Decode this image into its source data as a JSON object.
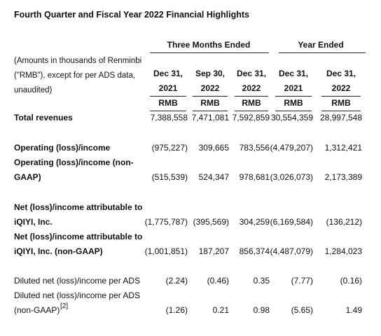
{
  "title": "Fourth Quarter and Fiscal Year 2022 Financial Highlights",
  "groups": {
    "three_months": "Three Months Ended",
    "year": "Year Ended"
  },
  "note_lines": [
    "(Amounts in thousands of Renminbi",
    "(\"RMB\"), except for per ADS data,",
    "unaudited)"
  ],
  "columns": [
    {
      "date": "Dec 31,",
      "year": "2021",
      "unit": "RMB"
    },
    {
      "date": "Sep 30,",
      "year": "2022",
      "unit": "RMB"
    },
    {
      "date": "Dec 31,",
      "year": "2022",
      "unit": "RMB"
    },
    {
      "date": "Dec 31,",
      "year": "2021",
      "unit": "RMB"
    },
    {
      "date": "Dec 31,",
      "year": "2022",
      "unit": "RMB"
    }
  ],
  "rows": [
    {
      "label": [
        "Total revenues"
      ],
      "bold": true,
      "values": [
        "7,388,558",
        "7,471,081",
        "7,592,859",
        "30,554,359",
        "28,997,548"
      ]
    },
    {
      "label": [
        "Operating (loss)/income"
      ],
      "bold": true,
      "values": [
        "(975,227)",
        "309,665",
        "783,556",
        "(4,479,207)",
        "1,312,421"
      ]
    },
    {
      "label": [
        "Operating (loss)/income (non-",
        "GAAP)"
      ],
      "bold": true,
      "values": [
        "(515,539)",
        "524,347",
        "978,681",
        "(3,026,073)",
        "2,173,389"
      ]
    },
    {
      "label": [
        "Net (loss)/income attributable to",
        "iQIYI, Inc."
      ],
      "bold": true,
      "values": [
        "(1,775,787)",
        "(395,569)",
        "304,259",
        "(6,169,584)",
        "(136,212)"
      ]
    },
    {
      "label": [
        "Net (loss)/income attributable to",
        "iQIYI, Inc. (non-GAAP)"
      ],
      "bold": true,
      "values": [
        "(1,001,851)",
        "187,207",
        "856,374",
        "(4,487,079)",
        "1,284,023"
      ]
    },
    {
      "label": [
        "Diluted net (loss)/income per ADS"
      ],
      "bold": false,
      "values": [
        "(2.24)",
        "(0.46)",
        "0.35",
        "(7.77)",
        "(0.16)"
      ]
    },
    {
      "label": [
        "Diluted net (loss)/income per ADS",
        "(non-GAAP)"
      ],
      "footnote": "[2]",
      "bold": false,
      "values": [
        "(1.26)",
        "0.21",
        "0.98",
        "(5.65)",
        "1.49"
      ]
    }
  ]
}
